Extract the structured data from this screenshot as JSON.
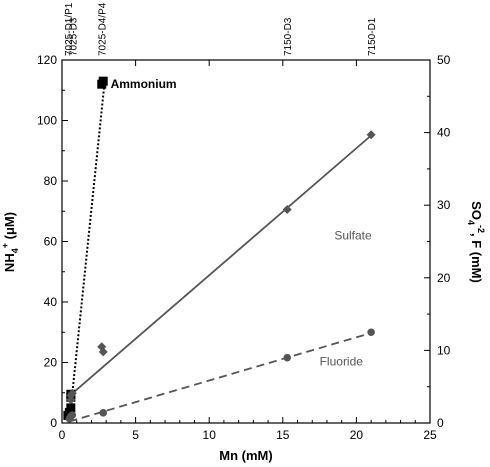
{
  "chart_data": {
    "type": "scatter",
    "x_axis": {
      "label": "Mn (mM)",
      "range": [
        0,
        25
      ],
      "ticks": [
        0,
        5,
        10,
        15,
        20,
        25
      ]
    },
    "y_left_axis": {
      "label_main": "NH",
      "label_sub": "4",
      "label_sup": "+",
      "label_rest": " (μM)",
      "range": [
        0,
        120
      ],
      "ticks": [
        0,
        20,
        40,
        60,
        80,
        100,
        120
      ]
    },
    "y_right_axis": {
      "label_main": "SO",
      "label_sub": "4",
      "label_sup": "-2",
      "label_rest": ", F (mM)",
      "range": [
        0,
        50
      ],
      "ticks": [
        0,
        10,
        20,
        30,
        40,
        50
      ]
    },
    "top_labels": [
      {
        "text": "7025-D1/P1",
        "x": 0.4
      },
      {
        "text": "7025-D3",
        "x": 0.7
      },
      {
        "text": "7025-D4/P4",
        "x": 2.7
      },
      {
        "text": "7150-D3",
        "x": 15.3
      },
      {
        "text": "7150-D1",
        "x": 21.0
      }
    ],
    "series": [
      {
        "name": "Ammonium",
        "axis": "left",
        "color": "#000000",
        "marker": "square",
        "line": "dotted",
        "label_bold": true,
        "points": [
          [
            0.4,
            2.5
          ],
          [
            0.5,
            3.5
          ],
          [
            0.6,
            5
          ],
          [
            0.6,
            8.5
          ],
          [
            0.6,
            9.5
          ],
          [
            2.7,
            112
          ],
          [
            2.8,
            113
          ]
        ],
        "fit": [
          [
            0.6,
            5
          ],
          [
            2.9,
            113
          ]
        ]
      },
      {
        "name": "Sulfate",
        "axis": "right",
        "color": "#555555",
        "marker": "diamond",
        "line": "solid",
        "label_bold": false,
        "points": [
          [
            0.6,
            3.2
          ],
          [
            0.6,
            3.8
          ],
          [
            0.7,
            4.1
          ],
          [
            2.7,
            10.5
          ],
          [
            2.8,
            9.8
          ],
          [
            15.3,
            29.4
          ],
          [
            21.0,
            39.7
          ]
        ],
        "fit": [
          [
            0.6,
            3.9
          ],
          [
            21.0,
            39.6
          ]
        ]
      },
      {
        "name": "Fluoride",
        "axis": "right",
        "color": "#555555",
        "marker": "circle",
        "line": "dashed",
        "label_bold": false,
        "points": [
          [
            0.5,
            0.6
          ],
          [
            0.6,
            0.9
          ],
          [
            0.7,
            1.1
          ],
          [
            2.8,
            1.4
          ],
          [
            15.3,
            9.0
          ],
          [
            21.0,
            12.5
          ]
        ],
        "fit": [
          [
            0.5,
            0.2
          ],
          [
            21.0,
            12.4
          ]
        ]
      }
    ],
    "annotations": [
      {
        "series": "Ammonium",
        "text": "Ammonium",
        "x": 3.3,
        "y_left": 112
      },
      {
        "series": "Sulfate",
        "text": "Sulfate",
        "x": 18.5,
        "y_right": 25.8
      },
      {
        "series": "Fluoride",
        "text": "Fluoride",
        "x": 17.5,
        "y_right": 8.5
      }
    ],
    "grid": false
  }
}
